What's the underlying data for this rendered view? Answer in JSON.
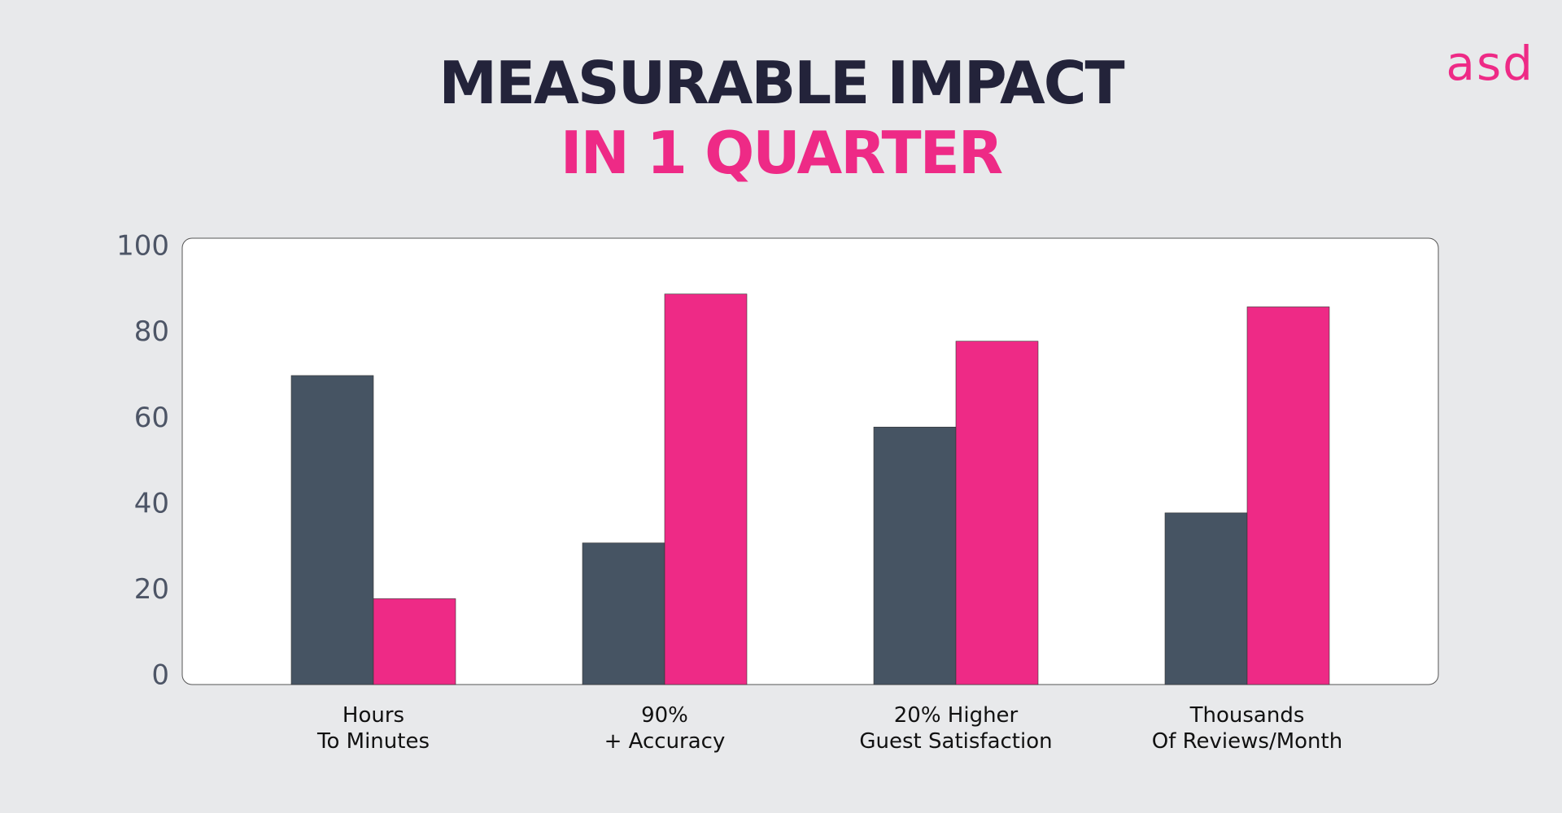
{
  "chart_data": {
    "type": "bar",
    "title": "MEASURABLE IMPACT",
    "subtitle": "IN 1 QUARTER",
    "logo": "asd",
    "categories": [
      "Hours\nTo Minutes",
      "90%\n+ Accuracy",
      "20% Higher\nGuest Satisfaction",
      "Thousands\nOf Reviews/Month"
    ],
    "series": [
      {
        "color": "#465463",
        "values": [
          72,
          33,
          60,
          40
        ]
      },
      {
        "color": "#ee2a86",
        "values": [
          20,
          91,
          80,
          88
        ]
      }
    ],
    "ylim": [
      0,
      104
    ],
    "yticks": [
      0,
      20,
      40,
      60,
      80,
      100
    ]
  }
}
